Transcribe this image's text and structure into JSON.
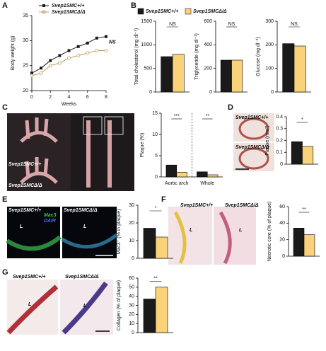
{
  "panel_labels": [
    "A",
    "B",
    "C",
    "D",
    "E",
    "F",
    "G"
  ],
  "legend": [
    {
      "name": "Svep1SMC+/+",
      "color": "#1a1a1a"
    },
    {
      "name": "Svep1SMCΔ/Δ",
      "color": "#f9d27a"
    }
  ],
  "image_panels": [
    {
      "labels": [
        "Svep1SMC+/+",
        "Svep1SMCΔ/Δ"
      ]
    },
    {
      "labels": [
        "Svep1SMC+/+",
        "Svep1SMCΔ/Δ"
      ]
    },
    {
      "labels": [
        "Svep1SMC+/+",
        "Svep1SMCΔ/Δ",
        "L",
        "L",
        "Mac3",
        "DAPI"
      ]
    },
    {
      "labels": [
        "Svep1SMC+/+",
        "Svep1SMCΔ/Δ",
        "L",
        "L"
      ]
    },
    {
      "labels": [
        "Svep1SMC+/+",
        "Svep1SMCΔ/Δ",
        "L",
        "L"
      ]
    }
  ],
  "chart_data": [
    {
      "type": "line",
      "xlabel": "Weeks",
      "ylabel": "Body weight (g)",
      "annotation": "NS",
      "x": [
        0,
        1,
        2,
        3,
        4,
        5,
        6,
        7,
        8
      ],
      "xlim": [
        0,
        8
      ],
      "xticks": [
        0,
        2,
        4,
        6,
        8
      ],
      "ylim": [
        20,
        35
      ],
      "yticks": [
        20,
        25,
        30,
        35
      ],
      "series": [
        {
          "name": "Svep1SMC+/+",
          "color": "#1a1a1a",
          "values": [
            23.5,
            24.5,
            26,
            27,
            28,
            28.8,
            29.5,
            30.5,
            30.8
          ]
        },
        {
          "name": "Svep1SMCΔ/Δ",
          "color": "#b89a5a",
          "values": [
            23,
            23.5,
            25,
            25.5,
            26.5,
            27,
            27.5,
            28,
            28
          ]
        }
      ]
    },
    {
      "type": "bar",
      "ylabel": "Total cholesterol (mg dl⁻¹)",
      "categories": [
        null
      ],
      "annotations": [
        "NS"
      ],
      "ylim": [
        0,
        1500
      ],
      "yticks": [
        0,
        500,
        1000,
        1500
      ],
      "series": [
        {
          "color": "#1a1a1a",
          "values": [
            750
          ]
        },
        {
          "color": "#f9d27a",
          "values": [
            800
          ]
        }
      ]
    },
    {
      "type": "bar",
      "ylabel": "Triglyceride (mg dl⁻¹)",
      "categories": [
        null
      ],
      "annotations": [
        "NS"
      ],
      "ylim": [
        0,
        600
      ],
      "yticks": [
        0,
        200,
        400,
        600
      ],
      "series": [
        {
          "color": "#1a1a1a",
          "values": [
            270
          ]
        },
        {
          "color": "#f9d27a",
          "values": [
            270
          ]
        }
      ]
    },
    {
      "type": "bar",
      "ylabel": "Glucose (mg dl⁻¹)",
      "categories": [
        null
      ],
      "annotations": [
        "NS"
      ],
      "ylim": [
        0,
        300
      ],
      "yticks": [
        0,
        100,
        200,
        300
      ],
      "series": [
        {
          "color": "#1a1a1a",
          "values": [
            205
          ]
        },
        {
          "color": "#f9d27a",
          "values": [
            195
          ]
        }
      ]
    },
    {
      "type": "bar",
      "ylabel": "Plaque (%)",
      "categories": [
        "Aortic arch",
        "Whole"
      ],
      "annotations": [
        "***",
        "**"
      ],
      "ylim": [
        0,
        15
      ],
      "yticks": [
        0,
        5,
        10,
        15
      ],
      "series": [
        {
          "color": "#1a1a1a",
          "values": [
            2.8,
            1.2
          ]
        },
        {
          "color": "#f9d27a",
          "values": [
            1.1,
            0.5
          ]
        }
      ]
    },
    {
      "type": "bar",
      "ylabel": "Plaque (mm²)",
      "categories": [
        null
      ],
      "annotations": [
        "*"
      ],
      "ylim": [
        0,
        0.4
      ],
      "yticks": [
        0,
        0.1,
        0.2,
        0.3,
        0.4
      ],
      "series": [
        {
          "color": "#1a1a1a",
          "values": [
            0.19
          ]
        },
        {
          "color": "#f9d27a",
          "values": [
            0.15
          ]
        }
      ]
    },
    {
      "type": "bar",
      "ylabel": "Mac3⁺ (% in plaque)",
      "categories": [
        null
      ],
      "annotations": [
        "*"
      ],
      "ylim": [
        0,
        30
      ],
      "yticks": [
        0,
        10,
        20,
        30
      ],
      "series": [
        {
          "color": "#1a1a1a",
          "values": [
            17
          ]
        },
        {
          "color": "#f9d27a",
          "values": [
            12
          ]
        }
      ]
    },
    {
      "type": "bar",
      "ylabel": "Necrotic core (% of plaque)",
      "categories": [
        null
      ],
      "annotations": [
        "**"
      ],
      "ylim": [
        0,
        60
      ],
      "yticks": [
        0,
        20,
        40,
        60
      ],
      "series": [
        {
          "color": "#1a1a1a",
          "values": [
            34
          ]
        },
        {
          "color": "#f9d27a",
          "values": [
            26
          ]
        }
      ]
    },
    {
      "type": "bar",
      "ylabel": "Collagen (% of plaque)",
      "categories": [
        null
      ],
      "annotations": [
        "**"
      ],
      "ylim": [
        0,
        60
      ],
      "yticks": [
        0,
        10,
        20,
        30,
        40,
        50,
        60
      ],
      "series": [
        {
          "color": "#1a1a1a",
          "values": [
            37
          ]
        },
        {
          "color": "#f9d27a",
          "values": [
            50
          ]
        }
      ]
    }
  ]
}
